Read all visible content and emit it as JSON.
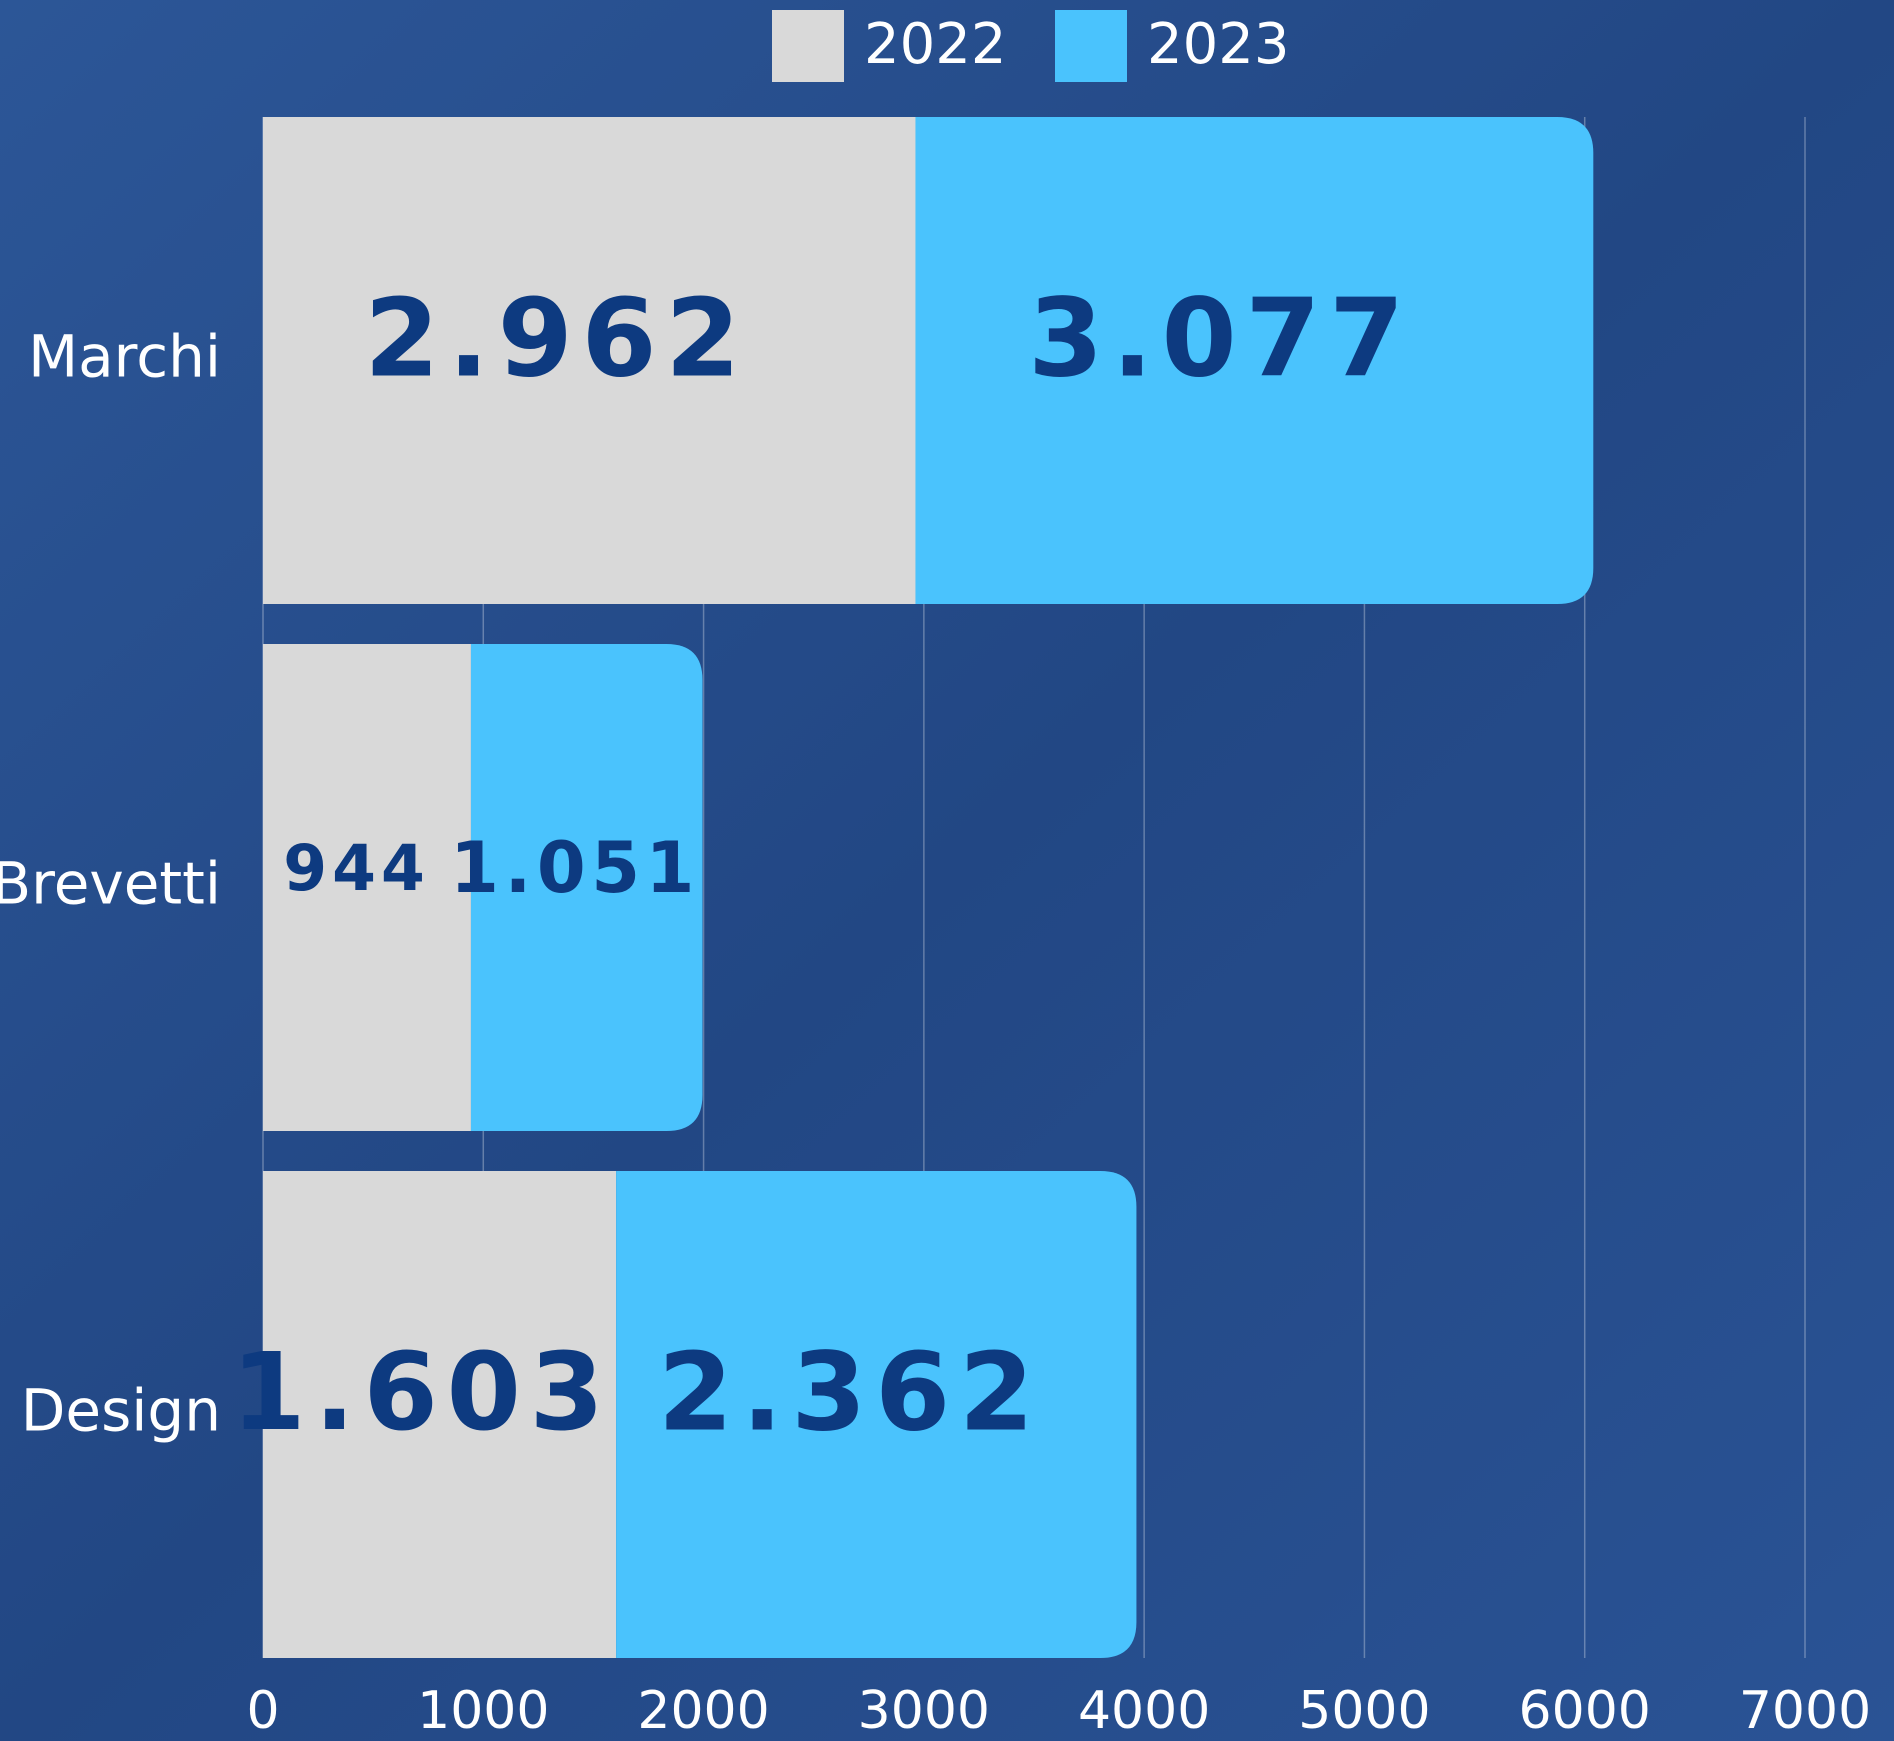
{
  "chart_data": {
    "type": "stacked-barh",
    "categories": [
      "Marchi",
      "Brevetti",
      "Design"
    ],
    "series": [
      {
        "name": "2022",
        "color": "#d9d9d9",
        "values": [
          2962,
          944,
          1603
        ],
        "value_labels": [
          "2.962",
          "944",
          "1.603"
        ]
      },
      {
        "name": "2023",
        "color": "#4ac3fd",
        "values": [
          3077,
          1051,
          2362
        ],
        "value_labels": [
          "3.077",
          "1.051",
          "2.362"
        ]
      }
    ],
    "xlim": [
      0,
      7000
    ],
    "xticks": [
      0,
      1000,
      2000,
      3000,
      4000,
      5000,
      6000,
      7000
    ],
    "grid": true,
    "legend": "top"
  }
}
